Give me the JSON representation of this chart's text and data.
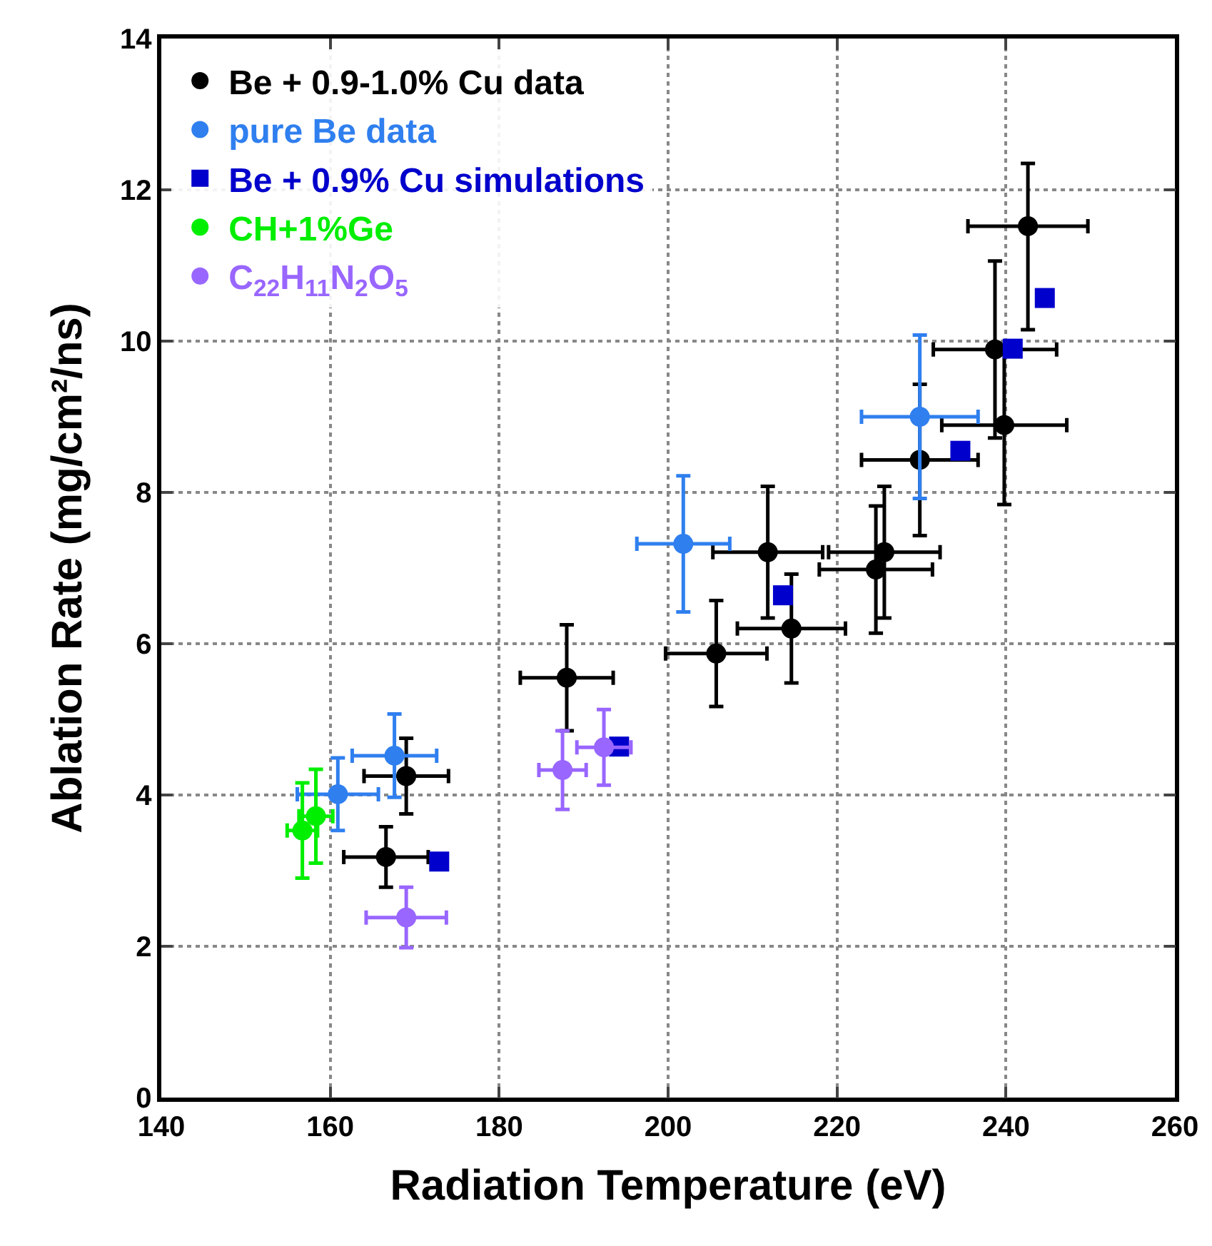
{
  "chart_data": {
    "type": "scatter",
    "xlabel": "Radiation Temperature (eV)",
    "ylabel": "Ablation Rate (mg/cm²/ns)",
    "xlim": [
      140,
      260
    ],
    "xticks": [
      140,
      160,
      180,
      200,
      220,
      240,
      260
    ],
    "ylim": [
      0,
      14
    ],
    "yticks": [
      0,
      2,
      4,
      6,
      8,
      10,
      12,
      14
    ],
    "grid": true,
    "legend": "top left",
    "series": [
      {
        "name": "Be + 0.9-1.0% Cu data",
        "color": "#000000",
        "marker": "circle",
        "x": [
          166.6,
          169.0,
          188.0,
          205.7,
          211.8,
          214.6,
          225.6,
          224.6,
          229.8,
          239.8,
          238.7,
          242.6
        ],
        "values": [
          3.18,
          4.25,
          5.55,
          5.87,
          7.21,
          6.2,
          7.21,
          6.98,
          8.43,
          8.89,
          9.89,
          11.52
        ],
        "errors": [
          0.4,
          0.5,
          0.7,
          0.7,
          0.87,
          0.72,
          0.87,
          0.84,
          1.0,
          1.05,
          1.17,
          [
            10.15,
            12.35
          ]
        ],
        "xerrors": [
          5,
          5,
          5.5,
          6,
          6.5,
          6.4,
          6.6,
          6.7,
          6.9,
          7.4,
          7.3,
          7.1
        ]
      },
      {
        "name": "pure Be data",
        "color": "#2f7fef",
        "marker": "circle",
        "x": [
          160.9,
          167.6,
          201.8,
          229.8
        ],
        "values": [
          4.01,
          4.52,
          7.32,
          9.0
        ],
        "errors": [
          0.48,
          0.55,
          0.9,
          1.08
        ],
        "xerrors": [
          4.8,
          5,
          5.5,
          6.9
        ]
      },
      {
        "name": "Be + 0.9% Cu simulations",
        "color": "#0000cc",
        "marker": "square",
        "x": [
          172.9,
          194.2,
          213.6,
          234.6,
          240.8,
          244.6
        ],
        "values": [
          3.12,
          4.64,
          6.64,
          8.55,
          9.9,
          10.57
        ]
      },
      {
        "name": "CH+1%Ge",
        "color": "#00ee00",
        "marker": "circle",
        "x": [
          156.7,
          158.3
        ],
        "values": [
          3.53,
          3.72
        ],
        "errors": [
          0.63,
          0.62
        ],
        "xerrors": [
          1.8,
          2
        ]
      },
      {
        "name": "C$_{22}$H$_{11}$N$_{2}$O$_{5}$",
        "color": "#9966ff",
        "marker": "circle",
        "x": [
          169.0,
          187.5,
          192.4
        ],
        "values": [
          2.38,
          4.33,
          4.63
        ],
        "errors": [
          0.4,
          0.52,
          0.5
        ],
        "xerrors": [
          4.75,
          2.8,
          3.2
        ]
      }
    ]
  }
}
